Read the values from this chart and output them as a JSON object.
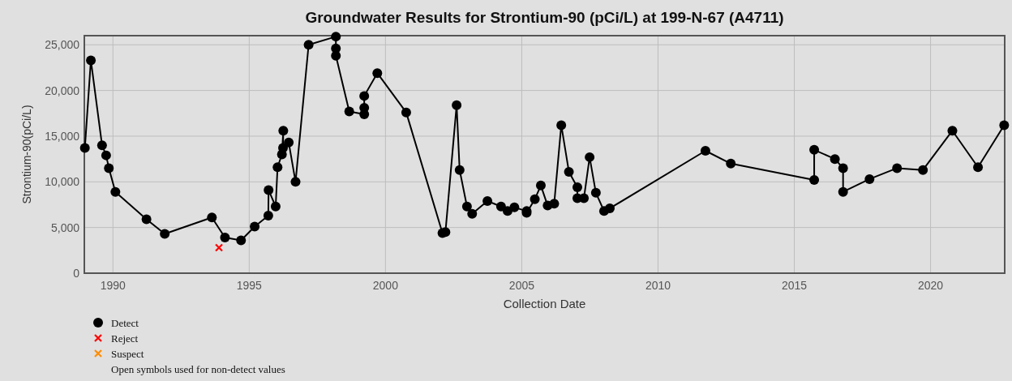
{
  "chart_data": {
    "type": "line",
    "title": "Groundwater Results for Strontium-90 (pCi/L) at 199-N-67 (A4711)",
    "xlabel": "Collection Date",
    "ylabel": "Strontium-90(pCi/L)",
    "xlim": [
      1988.95,
      2022.72
    ],
    "xticks": [
      1990,
      1995,
      2000,
      2005,
      2010,
      2015,
      2020
    ],
    "ylim": [
      0,
      26000
    ],
    "yticks": [
      {
        "value": 0,
        "label": "0"
      },
      {
        "value": 5000,
        "label": "5,000"
      },
      {
        "value": 10000,
        "label": "10,000"
      },
      {
        "value": 15000,
        "label": "15,000"
      },
      {
        "value": 20000,
        "label": "20,000"
      },
      {
        "value": 25000,
        "label": "25,000"
      }
    ],
    "grid": true,
    "legend": "bottom left",
    "annotations": [
      "Open symbols used for non-detect values"
    ],
    "series": [
      {
        "name": "Detect",
        "marker": "circle",
        "color": "#000000",
        "x": [
          1988.97,
          1989.19,
          1989.6,
          1989.75,
          1989.85,
          1990.09,
          1991.23,
          1991.9,
          1993.63,
          1994.11,
          1994.7,
          1995.2,
          1995.7,
          1995.71,
          1995.97,
          1996.04,
          1996.2,
          1996.25,
          1996.24,
          1996.45,
          1996.7,
          1997.18,
          1998.18,
          1998.18,
          1998.18,
          1998.67,
          1999.22,
          1999.22,
          1999.22,
          1999.7,
          2000.76,
          2002.09,
          2002.2,
          2002.61,
          2002.72,
          2002.99,
          2003.18,
          2003.74,
          2004.24,
          2004.48,
          2004.73,
          2005.18,
          2005.18,
          2005.48,
          2005.7,
          2005.95,
          2006.19,
          2006.45,
          2006.73,
          2007.04,
          2007.04,
          2007.28,
          2007.49,
          2007.72,
          2008.02,
          2008.23,
          2011.74,
          2012.67,
          2015.73,
          2015.73,
          2016.49,
          2016.79,
          2016.79,
          2017.76,
          2018.77,
          2019.72,
          2020.8,
          2021.74,
          2022.7
        ],
        "values": [
          13700,
          23300,
          14000,
          12900,
          11500,
          8900,
          5900,
          4300,
          6100,
          3900,
          3600,
          5100,
          6300,
          9100,
          7300,
          11600,
          13000,
          15600,
          13700,
          14300,
          10000,
          25000,
          25900,
          24600,
          23800,
          17700,
          17400,
          18100,
          19400,
          21900,
          17600,
          4400,
          4500,
          18400,
          11300,
          7300,
          6500,
          7900,
          7300,
          6800,
          7200,
          6800,
          6600,
          8100,
          9600,
          7400,
          7600,
          16200,
          11100,
          9400,
          8200,
          8200,
          12700,
          8800,
          6800,
          7100,
          13400,
          12000,
          10200,
          13500,
          12500,
          11500,
          8900,
          10300,
          11500,
          11300,
          15600,
          11600,
          16200
        ]
      },
      {
        "name": "Reject",
        "type": "scatter",
        "marker": "cross",
        "color": "#ff0000",
        "x": [
          1993.89
        ],
        "values": [
          2800
        ]
      },
      {
        "name": "Suspect",
        "type": "scatter",
        "marker": "cross",
        "color": "#ff8c00"
      }
    ]
  }
}
